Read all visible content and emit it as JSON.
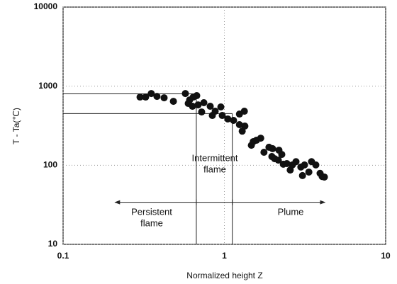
{
  "chart_data": {
    "type": "scatter",
    "log_x": true,
    "log_y": true,
    "grid": true,
    "color": "#111111",
    "xlabel": "Normalized height Z",
    "ylabel": "T - Ta(℃)",
    "xlim": [
      0.1,
      10
    ],
    "xticks": [
      0.1,
      1,
      10
    ],
    "ylim": [
      10,
      10000
    ],
    "yticks": [
      10,
      100,
      1000,
      10000
    ],
    "x": [
      0.3,
      0.325,
      0.352,
      0.382,
      0.423,
      0.483,
      0.573,
      0.609,
      0.641,
      0.674,
      0.597,
      0.634,
      0.687,
      0.746,
      0.817,
      0.877,
      0.951,
      0.723,
      0.842,
      0.97,
      1.05,
      1.14,
      1.24,
      1.33,
      1.29,
      1.24,
      1.34,
      1.47,
      1.51,
      1.58,
      1.68,
      1.76,
      1.89,
      1.99,
      1.97,
      2.05,
      2.18,
      2.16,
      2.27,
      2.32,
      2.44,
      2.56,
      2.64,
      2.78,
      2.98,
      3.05,
      3.14,
      3.34,
      3.47,
      3.69,
      3.92,
      4.04,
      4.17
    ],
    "values": [
      728,
      728,
      807,
      743,
      713,
      643,
      807,
      670,
      728,
      759,
      605,
      557,
      580,
      618,
      557,
      482,
      546,
      472,
      426,
      426,
      385,
      369,
      444,
      482,
      270,
      326,
      313,
      179,
      199,
      207,
      220,
      146,
      169,
      162,
      129,
      121,
      155,
      116,
      137,
      103,
      105,
      87,
      101,
      111,
      95,
      74,
      101,
      82,
      111,
      101,
      79,
      72,
      71
    ],
    "reference_lines": [
      {
        "x": 0.67,
        "y": 800
      },
      {
        "x": 1.12,
        "y": 450
      }
    ],
    "range_arrow": {
      "y": 34,
      "x": [
        0.21,
        0.67,
        1.12,
        4.2
      ]
    },
    "annotations": {
      "persistent": [
        "Persistent",
        "flame"
      ],
      "intermittent": [
        "Intermittent",
        "flame"
      ],
      "plume": [
        "Plume"
      ]
    }
  }
}
